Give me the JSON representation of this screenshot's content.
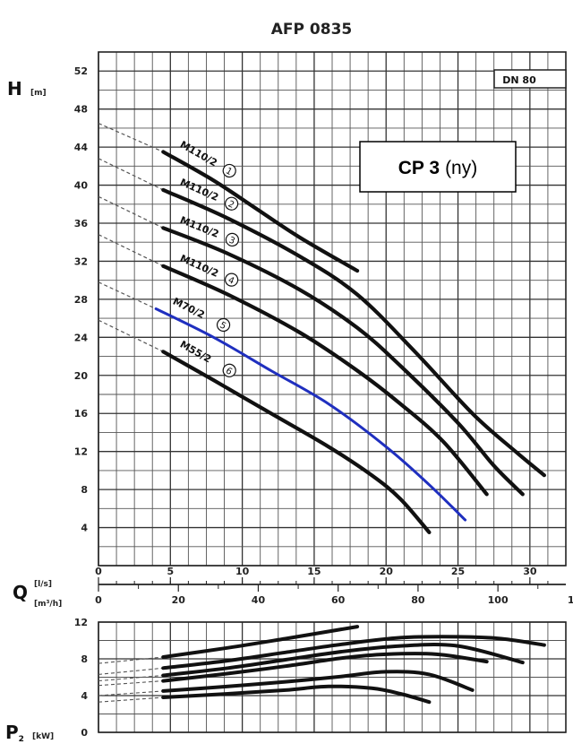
{
  "chart_data": [
    {
      "type": "line",
      "panel": "head",
      "title": "AFP 0835",
      "annotation": "DN 80",
      "callout": {
        "bold": "CP 3",
        "normal": "(ny)"
      },
      "ylabel": "H",
      "yunit": "[m]",
      "xlabel": "Q",
      "xunit_primary": "[l/s]",
      "xunit_secondary": "[m³/h]",
      "xlim": [
        0,
        32.5
      ],
      "ylim": [
        0,
        54
      ],
      "y_ticks": [
        "4",
        "8",
        "12",
        "16",
        "20",
        "24",
        "28",
        "32",
        "36",
        "40",
        "44",
        "48",
        "52"
      ],
      "x_ticks_ls": [
        "0",
        "5",
        "10",
        "15",
        "20",
        "25",
        "30"
      ],
      "x_ticks_m3h": [
        "0",
        "20",
        "40",
        "60",
        "80",
        "100",
        "120"
      ],
      "grid": true,
      "highlight_color": "#1f2fbf",
      "series": [
        {
          "name": "M110/2",
          "marker": "1",
          "extrapolation": [
            [
              0,
              46.5
            ],
            [
              4.5,
              43.5
            ]
          ],
          "points": [
            [
              4.5,
              43.5
            ],
            [
              8,
              40.5
            ],
            [
              11,
              37.5
            ],
            [
              14,
              34.5
            ],
            [
              18,
              31
            ]
          ]
        },
        {
          "name": "M110/2",
          "marker": "2",
          "extrapolation": [
            [
              0,
              42.8
            ],
            [
              4.5,
              39.5
            ]
          ],
          "points": [
            [
              4.5,
              39.5
            ],
            [
              9,
              36.5
            ],
            [
              14,
              32.5
            ],
            [
              18,
              28.5
            ],
            [
              22,
              22.5
            ],
            [
              26,
              16
            ],
            [
              29,
              12
            ],
            [
              31,
              9.5
            ]
          ]
        },
        {
          "name": "M110/2",
          "marker": "3",
          "extrapolation": [
            [
              0,
              38.8
            ],
            [
              4.5,
              35.5
            ]
          ],
          "points": [
            [
              4.5,
              35.5
            ],
            [
              9,
              32.8
            ],
            [
              14,
              29
            ],
            [
              18,
              25
            ],
            [
              21,
              21
            ],
            [
              25,
              15
            ],
            [
              27.5,
              10.5
            ],
            [
              29.5,
              7.5
            ]
          ]
        },
        {
          "name": "M110/2",
          "marker": "4",
          "extrapolation": [
            [
              0,
              34.8
            ],
            [
              4.5,
              31.5
            ]
          ],
          "points": [
            [
              4.5,
              31.5
            ],
            [
              9,
              28.5
            ],
            [
              14,
              24.5
            ],
            [
              18,
              20.5
            ],
            [
              21,
              17
            ],
            [
              24,
              13
            ],
            [
              27,
              7.5
            ]
          ]
        },
        {
          "name": "M70/2",
          "marker": "5",
          "highlight": true,
          "extrapolation": [
            [
              0,
              29.8
            ],
            [
              4,
              27
            ]
          ],
          "points": [
            [
              4,
              27
            ],
            [
              8,
              24
            ],
            [
              12,
              20.5
            ],
            [
              16,
              17
            ],
            [
              20,
              12.5
            ],
            [
              23,
              8.5
            ],
            [
              25.5,
              4.8
            ]
          ]
        },
        {
          "name": "M55/2",
          "marker": "6",
          "extrapolation": [
            [
              0,
              25.8
            ],
            [
              4.5,
              22.5
            ]
          ],
          "points": [
            [
              4.5,
              22.5
            ],
            [
              8,
              19.5
            ],
            [
              12,
              16
            ],
            [
              16,
              12.5
            ],
            [
              19,
              9.5
            ],
            [
              21,
              7
            ],
            [
              23,
              3.5
            ]
          ]
        }
      ]
    },
    {
      "type": "line",
      "panel": "power",
      "ylabel": "P",
      "ysub": "2",
      "yunit": "[kW]",
      "xlim": [
        0,
        32.5
      ],
      "ylim": [
        0,
        12
      ],
      "y_ticks": [
        "0",
        "4",
        "8",
        "12"
      ],
      "grid": true,
      "series": [
        {
          "marker": "1",
          "extrapolation": [
            [
              0,
              7.5
            ],
            [
              4.5,
              8.2
            ]
          ],
          "points": [
            [
              4.5,
              8.2
            ],
            [
              9,
              9.2
            ],
            [
              13,
              10.2
            ],
            [
              18,
              11.5
            ]
          ]
        },
        {
          "marker": "2",
          "extrapolation": [
            [
              0,
              6.3
            ],
            [
              4.5,
              7
            ]
          ],
          "points": [
            [
              4.5,
              7
            ],
            [
              9,
              7.8
            ],
            [
              13,
              8.7
            ],
            [
              17,
              9.6
            ],
            [
              21,
              10.3
            ],
            [
              25,
              10.4
            ],
            [
              28,
              10.2
            ],
            [
              31,
              9.5
            ]
          ]
        },
        {
          "marker": "3",
          "extrapolation": [
            [
              0,
              5.6
            ],
            [
              4.5,
              6.2
            ]
          ],
          "points": [
            [
              4.5,
              6.2
            ],
            [
              9,
              7
            ],
            [
              13,
              7.9
            ],
            [
              17,
              8.8
            ],
            [
              21,
              9.4
            ],
            [
              25,
              9.4
            ],
            [
              29.5,
              7.6
            ]
          ]
        },
        {
          "marker": "4",
          "extrapolation": [
            [
              0,
              5.1
            ],
            [
              4.5,
              5.6
            ]
          ],
          "points": [
            [
              4.5,
              5.6
            ],
            [
              9,
              6.4
            ],
            [
              13,
              7.2
            ],
            [
              17,
              8.1
            ],
            [
              20,
              8.5
            ],
            [
              23.5,
              8.5
            ],
            [
              27,
              7.7
            ]
          ]
        },
        {
          "marker": "5",
          "extrapolation": [
            [
              0,
              4
            ],
            [
              4.5,
              4.5
            ]
          ],
          "points": [
            [
              4.5,
              4.5
            ],
            [
              9,
              5
            ],
            [
              13,
              5.5
            ],
            [
              17,
              6.1
            ],
            [
              20,
              6.6
            ],
            [
              23,
              6.3
            ],
            [
              26,
              4.6
            ]
          ]
        },
        {
          "marker": "6",
          "extrapolation": [
            [
              0,
              3.3
            ],
            [
              4.5,
              3.8
            ]
          ],
          "points": [
            [
              4.5,
              3.8
            ],
            [
              9,
              4.2
            ],
            [
              13,
              4.6
            ],
            [
              16,
              5
            ],
            [
              19,
              4.8
            ],
            [
              21,
              4.2
            ],
            [
              23,
              3.3
            ]
          ]
        }
      ]
    }
  ]
}
